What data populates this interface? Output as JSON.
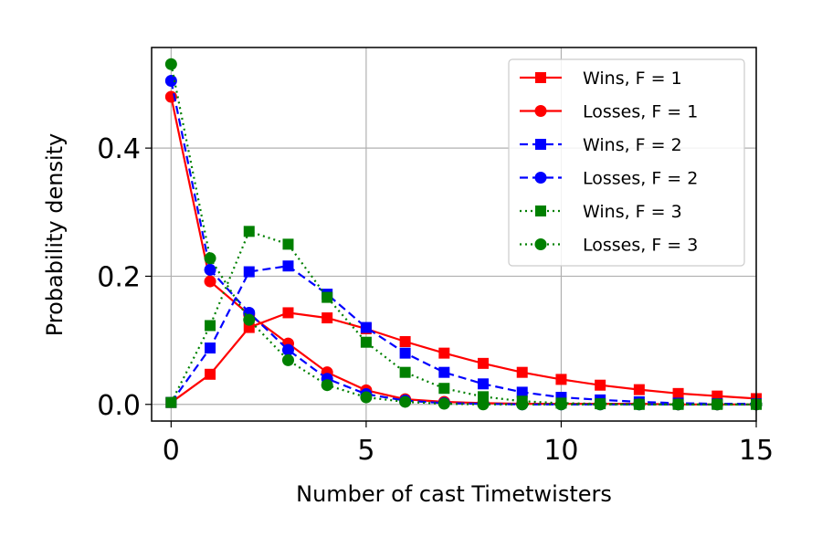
{
  "chart_data": {
    "type": "line",
    "title": "",
    "xlabel": "Number of cast Timetwisters",
    "ylabel": "Probability density",
    "xlim": [
      -0.5,
      15
    ],
    "ylim": [
      -0.026,
      0.557
    ],
    "xticks": [
      0,
      5,
      10,
      15
    ],
    "xtick_labels": [
      "0",
      "5",
      "10",
      "15"
    ],
    "yticks": [
      0.0,
      0.2,
      0.4
    ],
    "ytick_labels": [
      "0.0",
      "0.2",
      "0.4"
    ],
    "grid": true,
    "legend_position": "top-right",
    "x": [
      0,
      1,
      2,
      3,
      4,
      5,
      6,
      7,
      8,
      9,
      10,
      11,
      12,
      13,
      14,
      15
    ],
    "series": [
      {
        "name": "Wins, F = 1",
        "color": "#ff0000",
        "line": "solid",
        "marker": "square",
        "values": [
          0.003,
          0.047,
          0.12,
          0.143,
          0.135,
          0.118,
          0.098,
          0.08,
          0.064,
          0.05,
          0.039,
          0.03,
          0.023,
          0.017,
          0.013,
          0.009
        ]
      },
      {
        "name": "Losses, F = 1",
        "color": "#ff0000",
        "line": "solid",
        "marker": "circle",
        "values": [
          0.48,
          0.192,
          0.14,
          0.095,
          0.05,
          0.022,
          0.008,
          0.004,
          0.002,
          0.001,
          0.001,
          0.001,
          0.001,
          0.0,
          0.0,
          0.0
        ]
      },
      {
        "name": "Wins, F = 2",
        "color": "#0000ff",
        "line": "dashed",
        "marker": "square",
        "values": [
          0.003,
          0.088,
          0.207,
          0.216,
          0.172,
          0.12,
          0.08,
          0.05,
          0.032,
          0.019,
          0.011,
          0.007,
          0.004,
          0.002,
          0.001,
          0.001
        ]
      },
      {
        "name": "Losses, F = 2",
        "color": "#0000ff",
        "line": "dashed",
        "marker": "circle",
        "values": [
          0.505,
          0.21,
          0.143,
          0.085,
          0.04,
          0.016,
          0.006,
          0.002,
          0.001,
          0.0,
          0.0,
          0.0,
          0.0,
          0.0,
          0.0,
          0.0
        ]
      },
      {
        "name": "Wins, F = 3",
        "color": "#008000",
        "line": "dotted",
        "marker": "square",
        "values": [
          0.003,
          0.123,
          0.27,
          0.25,
          0.167,
          0.097,
          0.05,
          0.025,
          0.012,
          0.005,
          0.002,
          0.001,
          0.0,
          0.0,
          0.0,
          0.0
        ]
      },
      {
        "name": "Losses, F = 3",
        "color": "#008000",
        "line": "dotted",
        "marker": "circle",
        "values": [
          0.531,
          0.228,
          0.132,
          0.069,
          0.03,
          0.011,
          0.004,
          0.001,
          0.0,
          0.0,
          0.0,
          0.0,
          0.0,
          0.0,
          0.0,
          0.0
        ]
      }
    ]
  }
}
